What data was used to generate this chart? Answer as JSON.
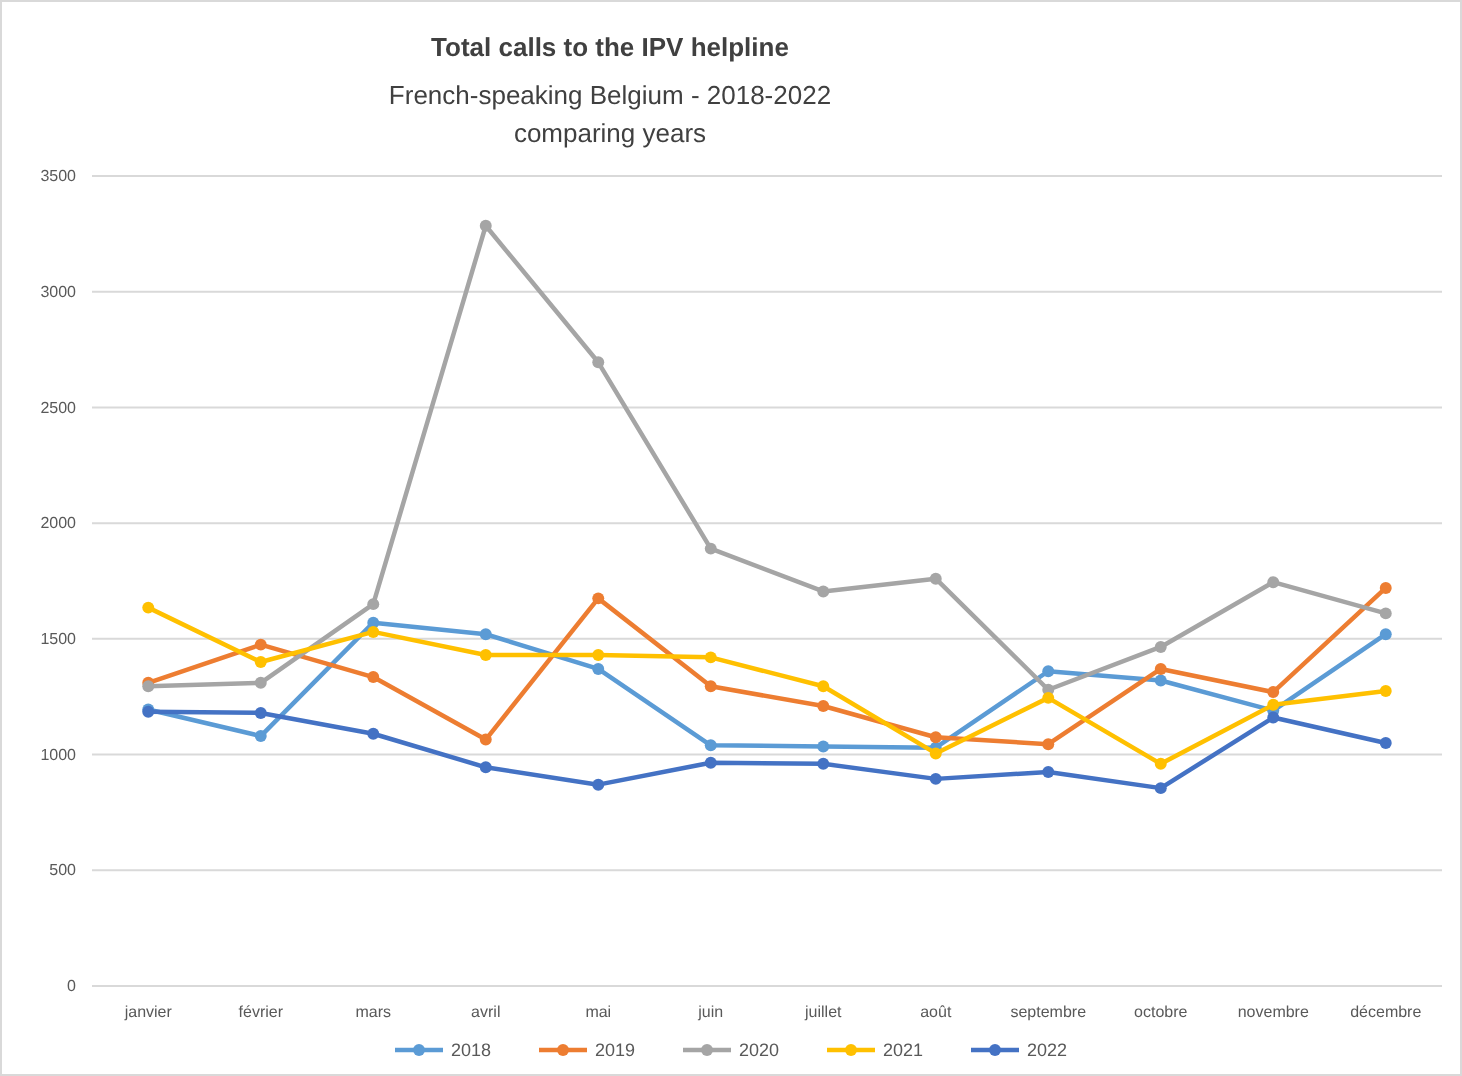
{
  "chart_data": {
    "type": "line",
    "title": "Total calls to the IPV helpline",
    "subtitle": "French-speaking Belgium - 2018-2022\ncomparing years",
    "categories": [
      "janvier",
      "février",
      "mars",
      "avril",
      "mai",
      "juin",
      "juillet",
      "août",
      "septembre",
      "octobre",
      "novembre",
      "décembre"
    ],
    "series": [
      {
        "name": "2018",
        "color": "#5b9bd5",
        "values": [
          1195,
          1080,
          1570,
          1520,
          1370,
          1040,
          1035,
          1030,
          1360,
          1320,
          1190,
          1520
        ]
      },
      {
        "name": "2019",
        "color": "#ed7d31",
        "values": [
          1310,
          1475,
          1335,
          1065,
          1675,
          1295,
          1210,
          1075,
          1045,
          1370,
          1270,
          1720
        ]
      },
      {
        "name": "2020",
        "color": "#a5a5a5",
        "values": [
          1295,
          1310,
          1650,
          3285,
          2695,
          1890,
          1705,
          1760,
          1280,
          1465,
          1745,
          1610
        ]
      },
      {
        "name": "2021",
        "color": "#ffc000",
        "values": [
          1635,
          1400,
          1530,
          1430,
          1430,
          1420,
          1295,
          1005,
          1245,
          960,
          1215,
          1275
        ]
      },
      {
        "name": "2022",
        "color": "#4472c4",
        "values": [
          1185,
          1180,
          1090,
          945,
          870,
          965,
          960,
          895,
          925,
          855,
          1160,
          1050
        ]
      }
    ],
    "ylim": [
      0,
      3500
    ],
    "yticks": [
      0,
      500,
      1000,
      1500,
      2000,
      2500,
      3000,
      3500
    ],
    "grid": "y",
    "legend": "bottom",
    "marker": "circle",
    "line_style": "solid"
  }
}
